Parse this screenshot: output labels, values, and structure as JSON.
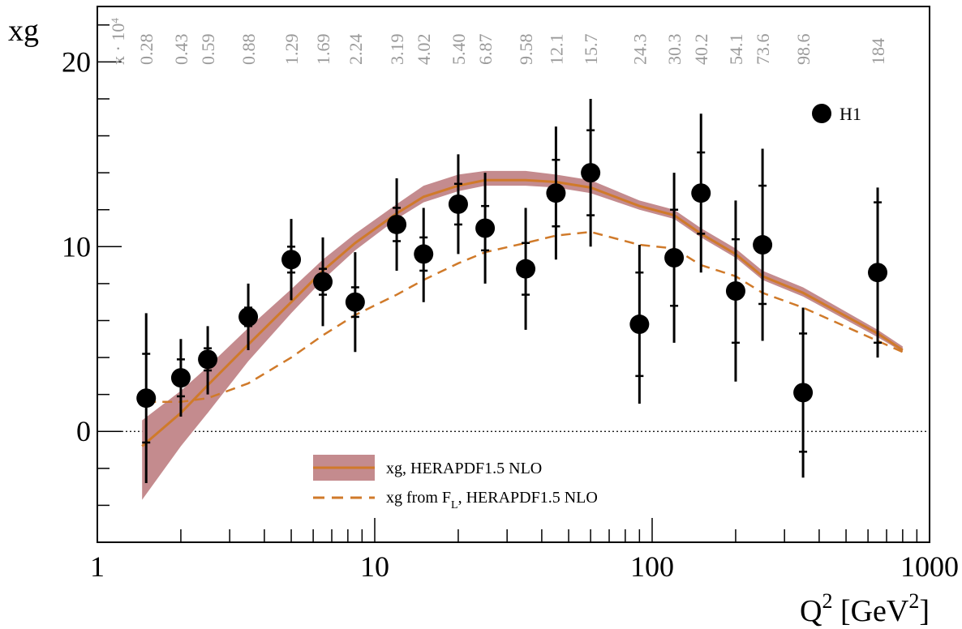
{
  "chart_data": {
    "type": "scatter",
    "x_scale": "log",
    "xlim": [
      1,
      1000
    ],
    "ylim": [
      -6,
      23
    ],
    "xlabel": "Q",
    "xlabel_sup": "2",
    "xlabel_unit_open": " [GeV",
    "xlabel_unit_sup": "2",
    "xlabel_unit_close": "]",
    "ylabel": "xg",
    "x_ticks": [
      1,
      10,
      100,
      1000
    ],
    "x_tick_labels": [
      "1",
      "10",
      "100",
      "1000"
    ],
    "y_ticks": [
      0,
      10,
      20
    ],
    "y_tick_labels": [
      "0",
      "10",
      "20"
    ],
    "zero_line": "dotted",
    "top_axis_prefix": "x · 10",
    "top_axis_prefix_sup": "4",
    "top_axis_labels": [
      {
        "q2": 1.5,
        "x": "0.28"
      },
      {
        "q2": 2.0,
        "x": "0.43"
      },
      {
        "q2": 2.5,
        "x": "0.59"
      },
      {
        "q2": 3.5,
        "x": "0.88"
      },
      {
        "q2": 5.0,
        "x": "1.29"
      },
      {
        "q2": 6.5,
        "x": "1.69"
      },
      {
        "q2": 8.5,
        "x": "2.24"
      },
      {
        "q2": 12,
        "x": "3.19"
      },
      {
        "q2": 15,
        "x": "4.02"
      },
      {
        "q2": 20,
        "x": "5.40"
      },
      {
        "q2": 25,
        "x": "6.87"
      },
      {
        "q2": 35,
        "x": "9.58"
      },
      {
        "q2": 45,
        "x": "12.1"
      },
      {
        "q2": 60,
        "x": "15.7"
      },
      {
        "q2": 90,
        "x": "24.3"
      },
      {
        "q2": 120,
        "x": "30.3"
      },
      {
        "q2": 150,
        "x": "40.2"
      },
      {
        "q2": 200,
        "x": "54.1"
      },
      {
        "q2": 250,
        "x": "73.6"
      },
      {
        "q2": 350,
        "x": "98.6"
      },
      {
        "q2": 650,
        "x": "184"
      }
    ],
    "series": [
      {
        "name": "H1",
        "kind": "points",
        "color": "#000000",
        "points": [
          {
            "x": 1.5,
            "y": 1.8,
            "stat": 2.4,
            "tot_lo": 4.6,
            "tot_hi": 4.6
          },
          {
            "x": 2.0,
            "y": 2.9,
            "stat": 1.0,
            "tot_lo": 2.1,
            "tot_hi": 2.1
          },
          {
            "x": 2.5,
            "y": 3.9,
            "stat": 0.6,
            "tot_lo": 1.9,
            "tot_hi": 1.8
          },
          {
            "x": 3.5,
            "y": 6.2,
            "stat": 0.5,
            "tot_lo": 1.8,
            "tot_hi": 1.8
          },
          {
            "x": 5.0,
            "y": 9.3,
            "stat": 0.7,
            "tot_lo": 2.2,
            "tot_hi": 2.2
          },
          {
            "x": 6.5,
            "y": 8.1,
            "stat": 0.7,
            "tot_lo": 2.4,
            "tot_hi": 2.4
          },
          {
            "x": 8.5,
            "y": 7.0,
            "stat": 0.8,
            "tot_lo": 2.7,
            "tot_hi": 2.7
          },
          {
            "x": 12,
            "y": 11.2,
            "stat": 0.9,
            "tot_lo": 2.5,
            "tot_hi": 2.5
          },
          {
            "x": 15,
            "y": 9.6,
            "stat": 0.9,
            "tot_lo": 2.6,
            "tot_hi": 2.5
          },
          {
            "x": 20,
            "y": 12.3,
            "stat": 1.1,
            "tot_lo": 2.7,
            "tot_hi": 2.7
          },
          {
            "x": 25,
            "y": 11.0,
            "stat": 1.2,
            "tot_lo": 3.0,
            "tot_hi": 3.0
          },
          {
            "x": 35,
            "y": 8.8,
            "stat": 1.4,
            "tot_lo": 3.3,
            "tot_hi": 3.3
          },
          {
            "x": 45,
            "y": 12.9,
            "stat": 1.8,
            "tot_lo": 3.6,
            "tot_hi": 3.6
          },
          {
            "x": 60,
            "y": 14.0,
            "stat": 2.3,
            "tot_lo": 4.0,
            "tot_hi": 4.0
          },
          {
            "x": 90,
            "y": 5.8,
            "stat": 2.8,
            "tot_lo": 4.3,
            "tot_hi": 4.3
          },
          {
            "x": 120,
            "y": 9.4,
            "stat": 2.6,
            "tot_lo": 4.6,
            "tot_hi": 4.6
          },
          {
            "x": 150,
            "y": 12.9,
            "stat": 2.2,
            "tot_lo": 4.3,
            "tot_hi": 4.3
          },
          {
            "x": 200,
            "y": 7.6,
            "stat": 2.8,
            "tot_lo": 4.9,
            "tot_hi": 4.9
          },
          {
            "x": 250,
            "y": 10.1,
            "stat": 3.2,
            "tot_lo": 5.2,
            "tot_hi": 5.2
          },
          {
            "x": 350,
            "y": 2.1,
            "stat": 3.2,
            "tot_lo": 4.6,
            "tot_hi": 4.6
          },
          {
            "x": 650,
            "y": 8.6,
            "stat": 3.8,
            "tot_lo": 4.6,
            "tot_hi": 4.6
          }
        ]
      },
      {
        "name": "xg, HERAPDF1.5 NLO",
        "kind": "line-band",
        "color": "#d07a2a",
        "band_color": "#c48b8e",
        "x": [
          1.45,
          2,
          2.5,
          3.5,
          5,
          6.5,
          8.5,
          12,
          15,
          20,
          25,
          35,
          45,
          60,
          90,
          120,
          150,
          200,
          250,
          350,
          650,
          800
        ],
        "y": [
          -0.8,
          1.0,
          2.5,
          4.7,
          7.0,
          8.7,
          10.2,
          11.8,
          12.7,
          13.3,
          13.6,
          13.6,
          13.5,
          13.2,
          12.2,
          11.7,
          10.7,
          9.6,
          8.4,
          7.5,
          5.3,
          4.4
        ],
        "lo": [
          -3.7,
          -0.8,
          1.0,
          3.8,
          6.4,
          8.2,
          9.8,
          11.5,
          12.4,
          13.0,
          13.3,
          13.3,
          13.2,
          12.9,
          12.0,
          11.5,
          10.5,
          9.4,
          8.2,
          7.3,
          5.1,
          4.3
        ],
        "hi": [
          0.6,
          2.2,
          3.5,
          5.6,
          7.7,
          9.3,
          10.7,
          12.3,
          13.3,
          13.9,
          14.1,
          14.1,
          13.9,
          13.6,
          12.5,
          12.0,
          11.0,
          9.9,
          8.7,
          7.8,
          5.5,
          4.6
        ]
      },
      {
        "name": "xg from F",
        "name_sub": "L",
        "name_suffix": ", HERAPDF1.5 NLO",
        "kind": "dashed-line",
        "color": "#d07a2a",
        "x": [
          1.5,
          2.0,
          2.5,
          3.5,
          5,
          6.5,
          8.5,
          12,
          15,
          20,
          25,
          35,
          45,
          60,
          90,
          120,
          150,
          200,
          250,
          350,
          650,
          800
        ],
        "y": [
          1.6,
          1.6,
          1.8,
          2.6,
          4.0,
          5.2,
          6.3,
          7.4,
          8.2,
          9.1,
          9.7,
          10.2,
          10.6,
          10.8,
          10.1,
          9.9,
          9.0,
          8.4,
          7.5,
          6.7,
          4.9,
          4.3
        ]
      }
    ],
    "legend": {
      "placement": "lower-center",
      "entries": [
        "xg, HERAPDF1.5 NLO",
        "xg from F_L, HERAPDF1.5 NLO"
      ]
    },
    "h1_legend": {
      "placement": "top-right",
      "label": "H1"
    }
  }
}
